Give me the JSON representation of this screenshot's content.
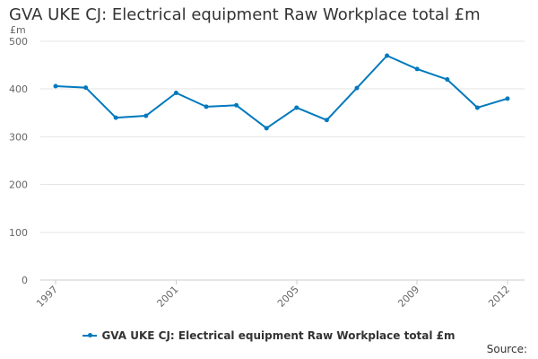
{
  "chart_data": {
    "type": "line",
    "title": "GVA UKE CJ: Electrical equipment Raw Workplace total £m",
    "ylabel": "£m",
    "xlabel": "",
    "x": [
      1997,
      1998,
      1999,
      2000,
      2001,
      2002,
      2003,
      2004,
      2005,
      2006,
      2007,
      2008,
      2009,
      2010,
      2011,
      2012
    ],
    "x_tick_labels": [
      "1997",
      "2001",
      "2005",
      "2009",
      "2012"
    ],
    "y_tick_labels": [
      "0",
      "100",
      "200",
      "300",
      "400",
      "500"
    ],
    "ylim": [
      0,
      500
    ],
    "series": [
      {
        "name": "GVA UKE CJ: Electrical equipment Raw Workplace total £m",
        "values": [
          406,
          403,
          340,
          344,
          392,
          363,
          366,
          318,
          361,
          335,
          402,
          470,
          442,
          420,
          361,
          380
        ],
        "color": "#0079bd"
      }
    ],
    "grid": "horizontal",
    "legend_position": "bottom"
  },
  "footer": {
    "source_label": "Source:"
  }
}
